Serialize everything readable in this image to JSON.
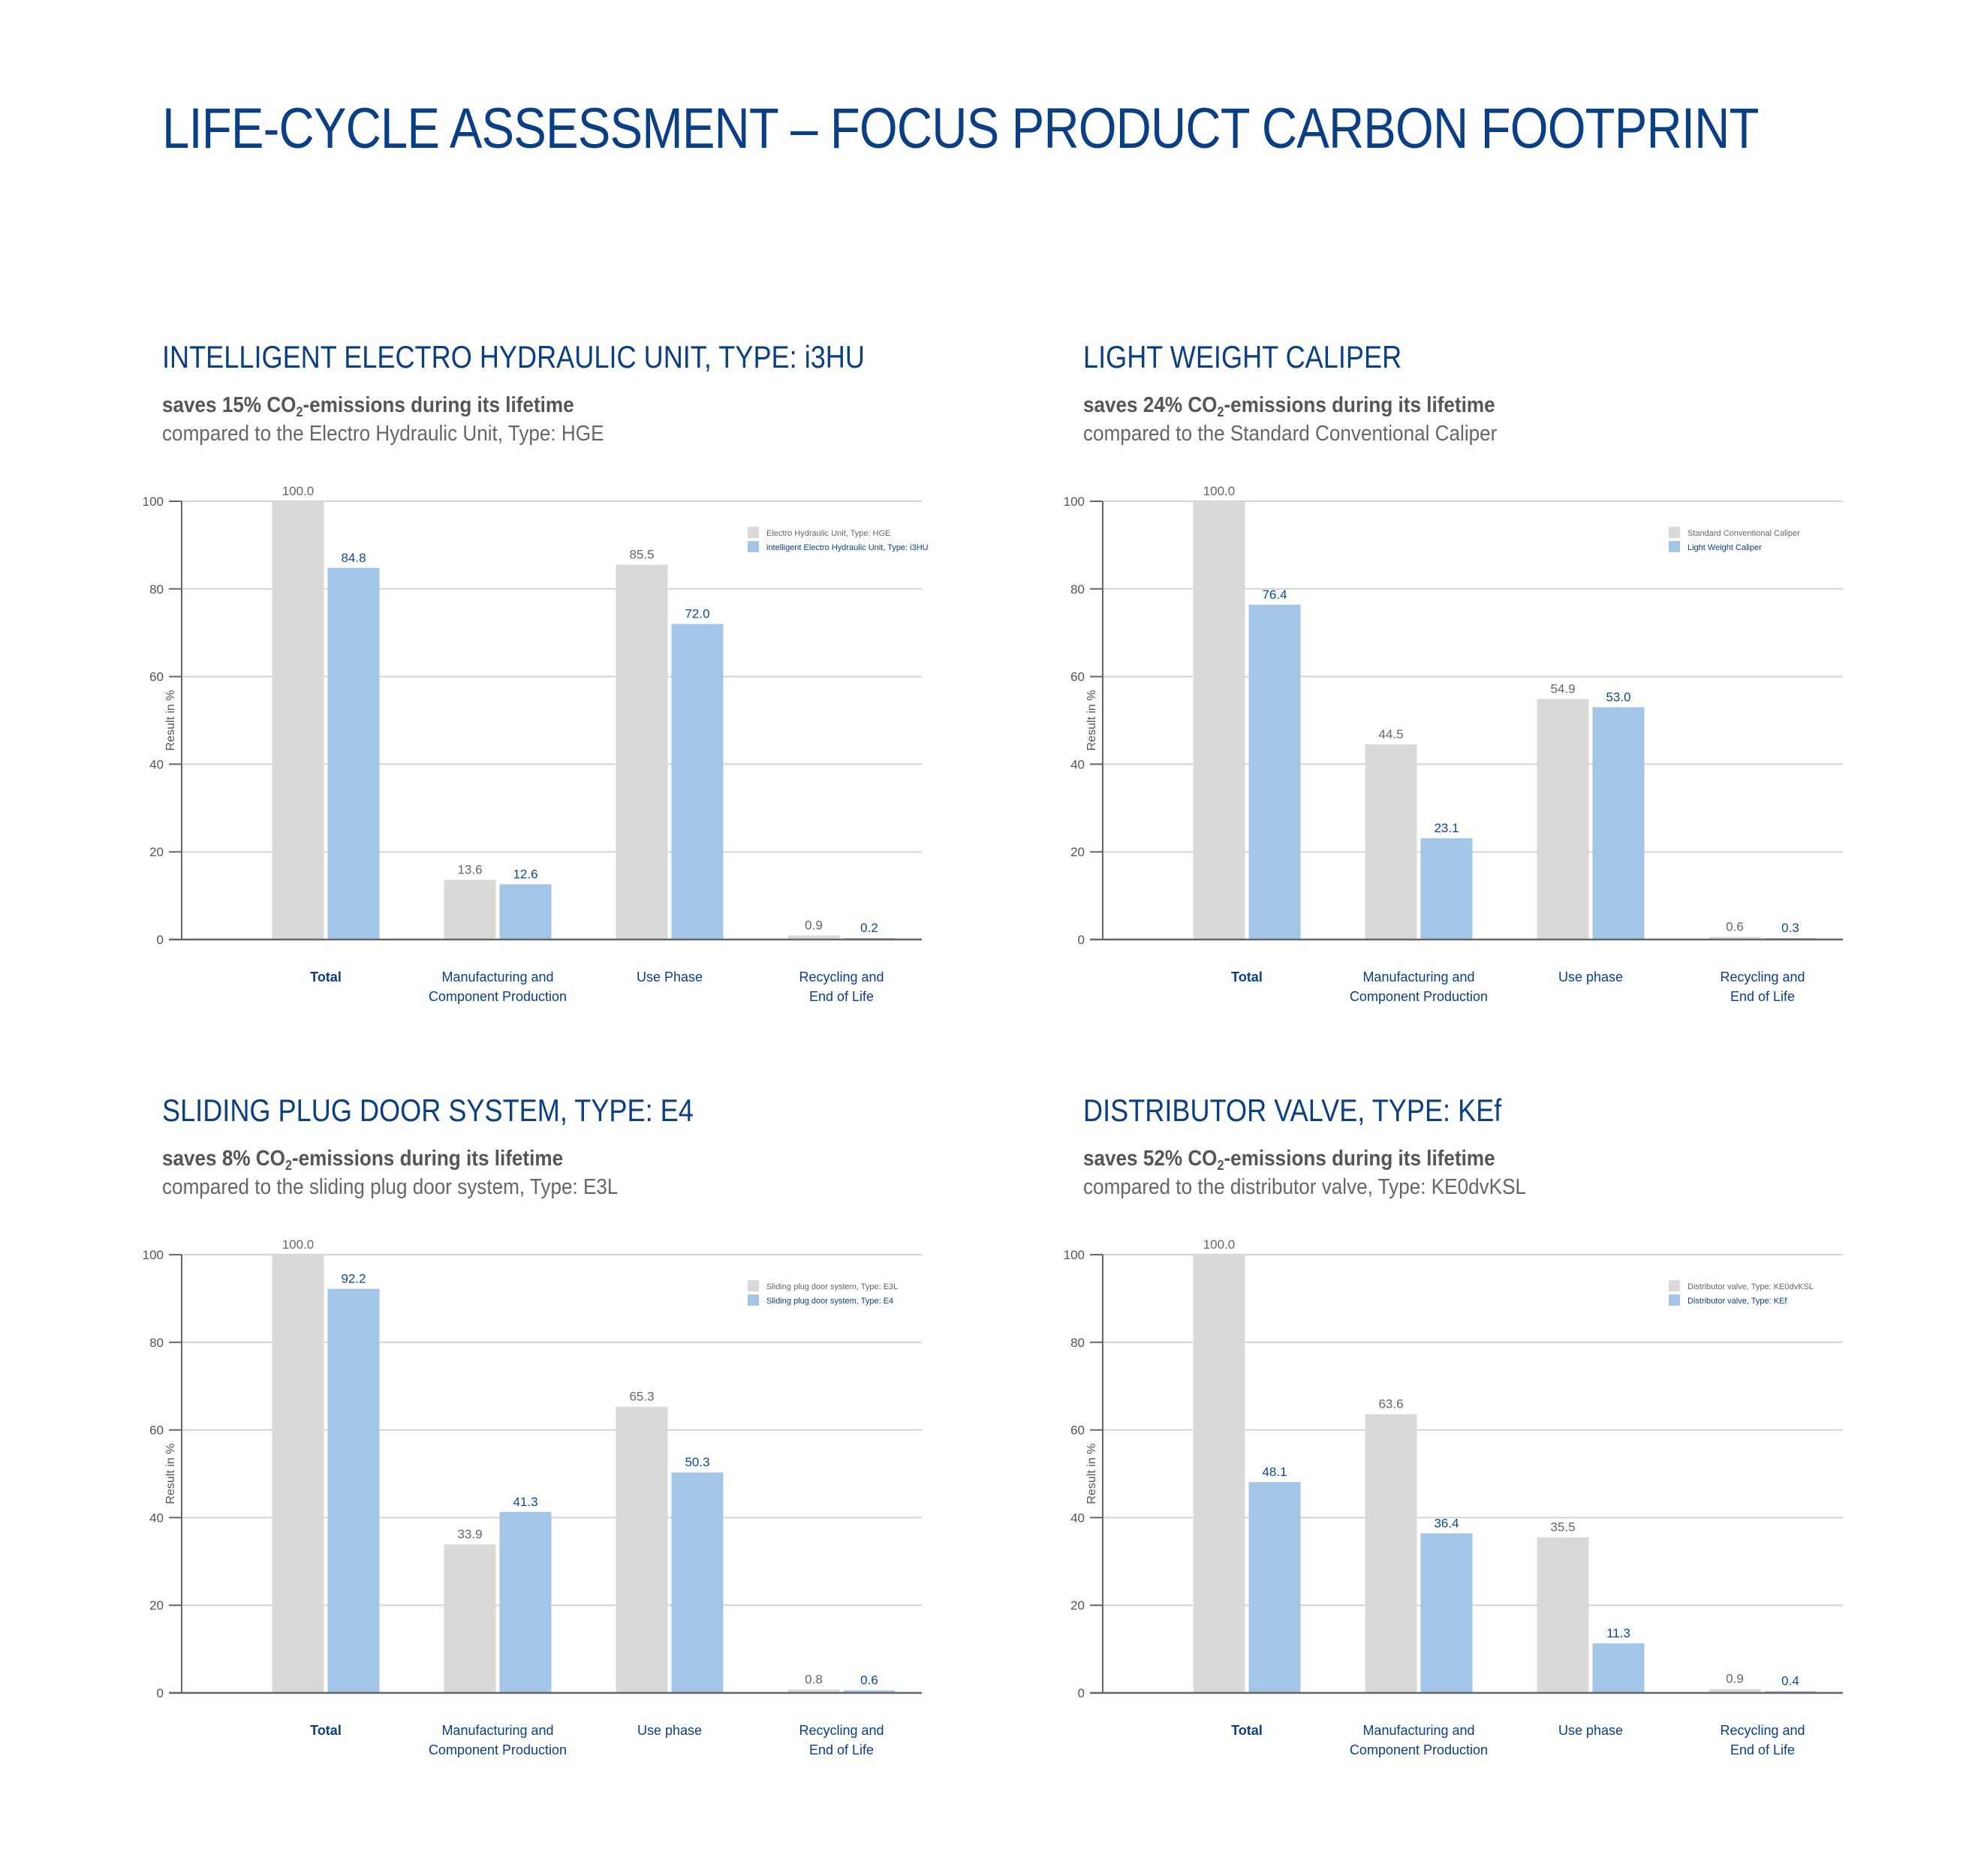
{
  "page_title": "LIFE-CYCLE ASSESSMENT – FOCUS PRODUCT CARBON FOOTPRINT",
  "colors": {
    "title_blue": "#0a3f85",
    "bar_grey": "#d9d9d9",
    "bar_blue": "#a3c5e8",
    "grid": "#d4d4d4",
    "axis": "#666666"
  },
  "panels": [
    {
      "title": "INTELLIGENT ELECTRO HYDRAULIC UNIT, TYPE: i3HU",
      "savings_pre": "saves 15% CO",
      "savings_sub": "2",
      "savings_post": "-emissions during its lifetime",
      "compare": "compared to the Electro Hydraulic Unit, Type: HGE"
    },
    {
      "title": "LIGHT WEIGHT CALIPER",
      "savings_pre": "saves 24% CO",
      "savings_sub": "2",
      "savings_post": "-emissions during its lifetime",
      "compare": "compared to the Standard Conventional Caliper"
    },
    {
      "title": "SLIDING PLUG DOOR SYSTEM, TYPE: E4",
      "savings_pre": "saves 8% CO",
      "savings_sub": "2",
      "savings_post": "-emissions during its lifetime",
      "compare": "compared to the sliding plug door system, Type: E3L"
    },
    {
      "title": "DISTRIBUTOR VALVE, TYPE: KEf",
      "savings_pre": "saves 52% CO",
      "savings_sub": "2",
      "savings_post": "-emissions during its lifetime",
      "compare": "compared to the distributor valve, Type: KE0dvKSL"
    }
  ],
  "chart_data": [
    {
      "type": "bar",
      "title": "INTELLIGENT ELECTRO HYDRAULIC UNIT, TYPE: i3HU",
      "xlabel": "",
      "ylabel": "Result in %",
      "ylim": [
        0,
        100
      ],
      "yticks": [
        0,
        20,
        40,
        60,
        80,
        100
      ],
      "grid": true,
      "legend": "top-right",
      "categories": [
        [
          "Total"
        ],
        [
          "Manufacturing and",
          "Component Production"
        ],
        [
          "Use Phase"
        ],
        [
          "Recycling and",
          "End of Life"
        ]
      ],
      "series": [
        {
          "name": "Electro Hydraulic Unit, Type: HGE",
          "values": [
            100.0,
            13.6,
            85.5,
            0.9
          ],
          "labels": [
            "100.0",
            "13.6",
            "85.5",
            "0.9"
          ]
        },
        {
          "name": "intelligent Electro Hydraulic Unit, Type: i3HU",
          "values": [
            84.8,
            12.6,
            72.0,
            0.2
          ],
          "labels": [
            "84.8",
            "12.6",
            "72.0",
            "0.2"
          ]
        }
      ]
    },
    {
      "type": "bar",
      "title": "LIGHT WEIGHT CALIPER",
      "xlabel": "",
      "ylabel": "Result in %",
      "ylim": [
        0,
        100
      ],
      "yticks": [
        0,
        20,
        40,
        60,
        80,
        100
      ],
      "grid": true,
      "legend": "top-right",
      "categories": [
        [
          "Total"
        ],
        [
          "Manufacturing and",
          "Component Production"
        ],
        [
          "Use phase"
        ],
        [
          "Recycling and",
          "End of Life"
        ]
      ],
      "series": [
        {
          "name": "Standard Conventional Caliper",
          "values": [
            100.0,
            44.5,
            54.9,
            0.6
          ],
          "labels": [
            "100.0",
            "44.5",
            "54.9",
            "0.6"
          ]
        },
        {
          "name": "Light Weight Caliper",
          "values": [
            76.4,
            23.1,
            53.0,
            0.3
          ],
          "labels": [
            "76.4",
            "23.1",
            "53.0",
            "0.3"
          ]
        }
      ]
    },
    {
      "type": "bar",
      "title": "SLIDING PLUG DOOR SYSTEM, TYPE: E4",
      "xlabel": "",
      "ylabel": "Result in %",
      "ylim": [
        0,
        100
      ],
      "yticks": [
        0,
        20,
        40,
        60,
        80,
        100
      ],
      "grid": true,
      "legend": "top-right",
      "categories": [
        [
          "Total"
        ],
        [
          "Manufacturing and",
          "Component Production"
        ],
        [
          "Use phase"
        ],
        [
          "Recycling and",
          "End of Life"
        ]
      ],
      "series": [
        {
          "name": "Sliding plug door system, Type: E3L",
          "values": [
            100.0,
            33.9,
            65.3,
            0.8
          ],
          "labels": [
            "100.0",
            "33.9",
            "65.3",
            "0.8"
          ]
        },
        {
          "name": "Sliding plug door system, Type: E4",
          "values": [
            92.2,
            41.3,
            50.3,
            0.6
          ],
          "labels": [
            "92.2",
            "41.3",
            "50.3",
            "0.6"
          ]
        }
      ]
    },
    {
      "type": "bar",
      "title": "DISTRIBUTOR VALVE, TYPE: KEf",
      "xlabel": "",
      "ylabel": "Result in %",
      "ylim": [
        0,
        100
      ],
      "yticks": [
        0,
        20,
        40,
        60,
        80,
        100
      ],
      "grid": true,
      "legend": "top-right",
      "categories": [
        [
          "Total"
        ],
        [
          "Manufacturing and",
          "Component Production"
        ],
        [
          "Use phase"
        ],
        [
          "Recycling and",
          "End of Life"
        ]
      ],
      "series": [
        {
          "name": "Distributor valve, Type: KE0dvKSL",
          "values": [
            100.0,
            63.6,
            35.5,
            0.9
          ],
          "labels": [
            "100.0",
            "63.6",
            "35.5",
            "0.9"
          ]
        },
        {
          "name": "Distributor valve, Type: KEf",
          "values": [
            48.1,
            36.4,
            11.3,
            0.4
          ],
          "labels": [
            "48.1",
            "36.4",
            "11.3",
            "0.4"
          ]
        }
      ]
    }
  ]
}
